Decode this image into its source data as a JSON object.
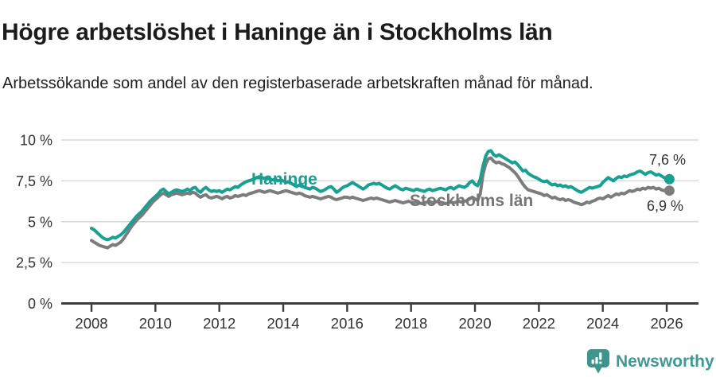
{
  "header": {
    "title": "Högre arbetslöshet i Haninge än i Stockholms län",
    "subtitle": "Arbetssökande som andel av den registerbaserade arbetskraften månad för månad."
  },
  "chart_data": {
    "type": "line",
    "title": "Högre arbetslöshet i Haninge än i Stockholms län",
    "xlabel": "",
    "ylabel": "",
    "x_unit": "month",
    "x_start": "2008-01",
    "x_end": "2026-02",
    "ylim": [
      0,
      10.5
    ],
    "grid": true,
    "legend": "inline-labels",
    "y_ticks": [
      {
        "value": 0,
        "label": "0 %"
      },
      {
        "value": 2.5,
        "label": "2,5 %"
      },
      {
        "value": 5,
        "label": "5 %"
      },
      {
        "value": 7.5,
        "label": "7,5 %"
      },
      {
        "value": 10,
        "label": "10 %"
      }
    ],
    "x_ticks": [
      {
        "value": 2008,
        "label": "2008"
      },
      {
        "value": 2010,
        "label": "2010"
      },
      {
        "value": 2012,
        "label": "2012"
      },
      {
        "value": 2014,
        "label": "2014"
      },
      {
        "value": 2016,
        "label": "2016"
      },
      {
        "value": 2018,
        "label": "2018"
      },
      {
        "value": 2020,
        "label": "2020"
      },
      {
        "value": 2022,
        "label": "2022"
      },
      {
        "value": 2024,
        "label": "2024"
      },
      {
        "value": 2026,
        "label": "2026"
      }
    ],
    "series": [
      {
        "name": "Haninge",
        "slug": "haninge",
        "color": "#18a093",
        "end_label": "7,6 %",
        "end_value": 7.6,
        "values": [
          4.6,
          4.5,
          4.35,
          4.2,
          4.05,
          3.95,
          3.9,
          3.95,
          4.05,
          4.0,
          4.1,
          4.2,
          4.35,
          4.55,
          4.75,
          4.95,
          5.15,
          5.35,
          5.5,
          5.65,
          5.85,
          6.05,
          6.25,
          6.4,
          6.55,
          6.7,
          6.9,
          7.0,
          6.85,
          6.7,
          6.8,
          6.9,
          6.95,
          6.9,
          6.85,
          6.9,
          7.0,
          6.9,
          7.05,
          7.1,
          6.9,
          6.8,
          7.0,
          7.1,
          6.95,
          6.85,
          6.9,
          6.85,
          6.9,
          6.8,
          6.9,
          7.0,
          6.95,
          7.05,
          7.15,
          7.1,
          7.25,
          7.35,
          7.45,
          7.5,
          7.55,
          7.6,
          7.7,
          7.75,
          7.7,
          7.65,
          7.7,
          7.6,
          7.55,
          7.6,
          7.5,
          7.55,
          7.5,
          7.4,
          7.45,
          7.35,
          7.25,
          7.15,
          7.25,
          7.2,
          7.1,
          7.05,
          7.0,
          7.1,
          7.05,
          6.95,
          6.85,
          6.9,
          7.0,
          7.1,
          7.15,
          7.0,
          6.8,
          6.9,
          7.05,
          7.15,
          7.2,
          7.3,
          7.4,
          7.3,
          7.2,
          7.1,
          7.0,
          7.1,
          7.25,
          7.3,
          7.35,
          7.3,
          7.35,
          7.25,
          7.15,
          7.05,
          7.0,
          7.1,
          7.2,
          7.1,
          7.0,
          6.95,
          7.05,
          7.0,
          6.95,
          6.9,
          7.0,
          6.95,
          6.9,
          6.85,
          6.95,
          7.0,
          6.9,
          6.95,
          7.0,
          7.05,
          7.0,
          6.95,
          7.05,
          7.1,
          7.0,
          7.1,
          7.2,
          7.15,
          7.1,
          7.2,
          7.4,
          7.5,
          7.3,
          7.2,
          7.6,
          8.4,
          9.0,
          9.3,
          9.35,
          9.1,
          9.0,
          9.1,
          9.0,
          8.9,
          8.8,
          8.7,
          8.6,
          8.65,
          8.5,
          8.3,
          8.1,
          8.15,
          7.95,
          7.85,
          7.75,
          7.7,
          7.6,
          7.5,
          7.45,
          7.5,
          7.35,
          7.25,
          7.3,
          7.2,
          7.25,
          7.15,
          7.2,
          7.1,
          7.15,
          7.05,
          6.95,
          6.85,
          6.8,
          6.9,
          7.0,
          7.1,
          7.05,
          7.1,
          7.15,
          7.2,
          7.4,
          7.55,
          7.7,
          7.6,
          7.5,
          7.65,
          7.75,
          7.7,
          7.8,
          7.75,
          7.85,
          7.9,
          7.95,
          8.05,
          8.1,
          8.0,
          7.9,
          8.0,
          8.05,
          7.95,
          7.85,
          7.9,
          7.8,
          7.7,
          7.6,
          7.6
        ]
      },
      {
        "name": "Stockholms län",
        "slug": "stockholms-lan",
        "color": "#7c7c7c",
        "end_label": "6,9 %",
        "end_value": 6.9,
        "values": [
          3.85,
          3.75,
          3.65,
          3.55,
          3.5,
          3.45,
          3.4,
          3.5,
          3.6,
          3.55,
          3.65,
          3.75,
          3.95,
          4.2,
          4.45,
          4.7,
          4.9,
          5.1,
          5.25,
          5.4,
          5.6,
          5.8,
          6.0,
          6.2,
          6.35,
          6.5,
          6.65,
          6.75,
          6.65,
          6.55,
          6.65,
          6.7,
          6.75,
          6.7,
          6.65,
          6.7,
          6.75,
          6.7,
          6.8,
          6.75,
          6.6,
          6.5,
          6.6,
          6.65,
          6.5,
          6.45,
          6.5,
          6.55,
          6.5,
          6.4,
          6.5,
          6.55,
          6.45,
          6.5,
          6.6,
          6.55,
          6.6,
          6.65,
          6.6,
          6.7,
          6.75,
          6.8,
          6.85,
          6.9,
          6.85,
          6.8,
          6.85,
          6.9,
          6.85,
          6.8,
          6.75,
          6.8,
          6.85,
          6.9,
          6.85,
          6.8,
          6.75,
          6.7,
          6.75,
          6.7,
          6.6,
          6.55,
          6.5,
          6.55,
          6.5,
          6.45,
          6.4,
          6.45,
          6.5,
          6.55,
          6.5,
          6.4,
          6.35,
          6.4,
          6.45,
          6.5,
          6.5,
          6.45,
          6.5,
          6.45,
          6.4,
          6.35,
          6.3,
          6.35,
          6.4,
          6.45,
          6.4,
          6.45,
          6.4,
          6.35,
          6.3,
          6.25,
          6.2,
          6.25,
          6.3,
          6.25,
          6.2,
          6.15,
          6.2,
          6.25,
          6.2,
          6.15,
          6.2,
          6.15,
          6.1,
          6.15,
          6.2,
          6.25,
          6.15,
          6.2,
          6.25,
          6.2,
          6.15,
          6.1,
          6.15,
          6.2,
          6.15,
          6.2,
          6.25,
          6.2,
          6.25,
          6.3,
          6.4,
          6.5,
          6.4,
          6.3,
          6.7,
          7.9,
          8.5,
          8.85,
          8.9,
          8.7,
          8.6,
          8.65,
          8.55,
          8.5,
          8.4,
          8.3,
          8.15,
          8.0,
          7.8,
          7.55,
          7.3,
          7.1,
          6.95,
          6.9,
          6.85,
          6.8,
          6.75,
          6.7,
          6.6,
          6.65,
          6.55,
          6.45,
          6.5,
          6.4,
          6.35,
          6.4,
          6.3,
          6.35,
          6.3,
          6.2,
          6.15,
          6.1,
          6.05,
          6.1,
          6.2,
          6.15,
          6.25,
          6.3,
          6.4,
          6.45,
          6.4,
          6.5,
          6.6,
          6.5,
          6.6,
          6.7,
          6.65,
          6.75,
          6.7,
          6.8,
          6.9,
          6.85,
          6.9,
          7.0,
          6.95,
          7.05,
          7.0,
          7.1,
          7.05,
          7.1,
          7.0,
          7.05,
          6.95,
          6.9,
          6.95,
          6.9
        ]
      }
    ]
  },
  "footer": {
    "brand": "Newsworthy"
  },
  "colors": {
    "accent_teal": "#18a093",
    "series_gray": "#7c7c7c",
    "axis": "#3d3d3d",
    "gridline": "#d9d9d9",
    "title_text": "#1c1c1c",
    "tick_text": "#333333",
    "logo_teal": "#40948e"
  }
}
